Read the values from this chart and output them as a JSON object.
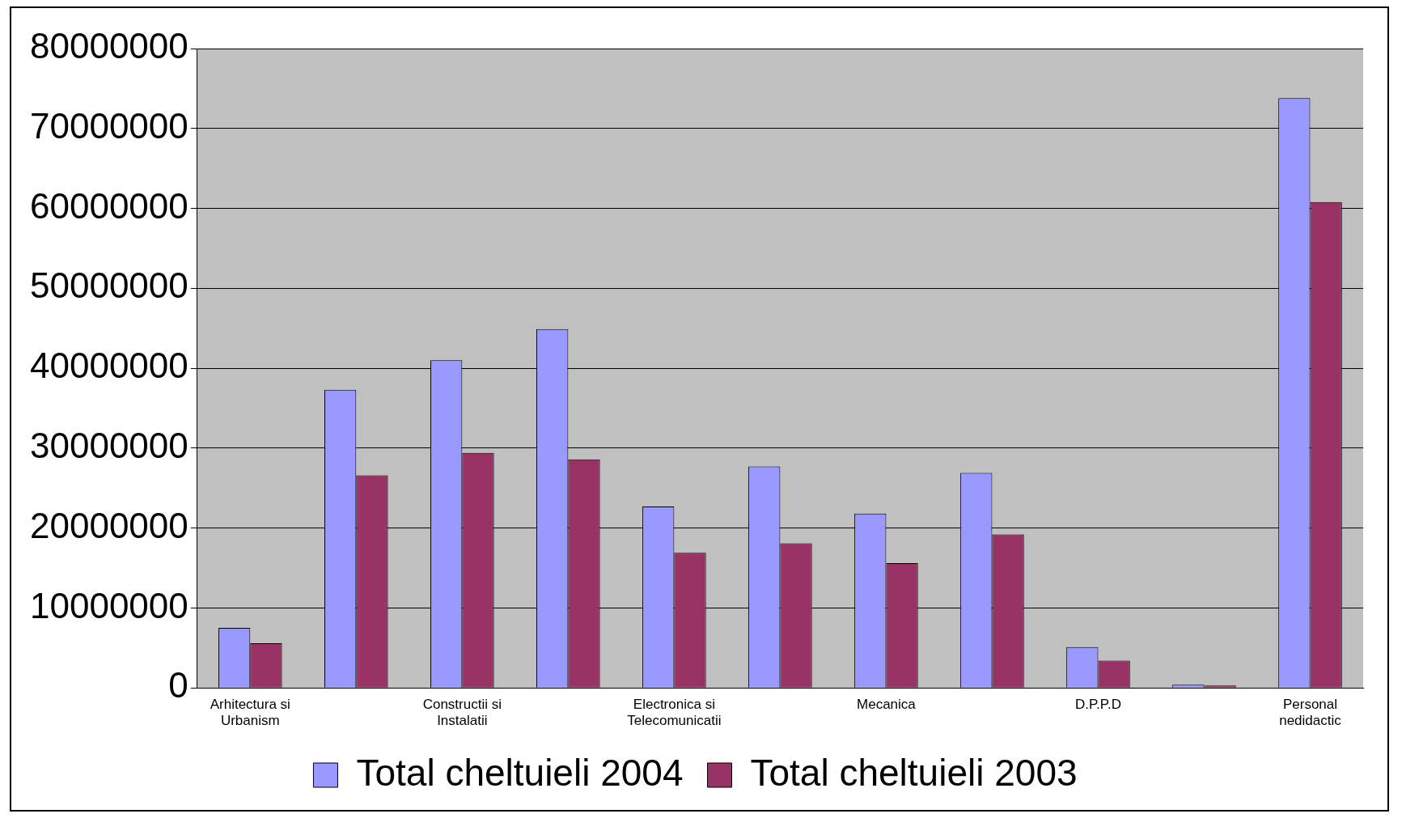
{
  "chart_data": {
    "type": "bar",
    "categories": [
      "Arhitectura si Urbanism",
      null,
      "Constructii si Instalatii",
      null,
      "Electronica si Telecomunicatii",
      null,
      "Mecanica",
      null,
      "D.P.P.D",
      null,
      "Personal nedidactic"
    ],
    "series": [
      {
        "name": "Total cheltuieli 2004",
        "color": "#9999ff",
        "values": [
          7500000,
          37300000,
          41000000,
          44900000,
          22700000,
          27700000,
          21800000,
          26900000,
          5100000,
          400000,
          73800000
        ]
      },
      {
        "name": "Total cheltuieli 2003",
        "color": "#993366",
        "values": [
          5600000,
          26600000,
          29400000,
          28600000,
          16900000,
          18100000,
          15600000,
          19200000,
          3400000,
          300000,
          60800000
        ]
      }
    ],
    "ylim": [
      0,
      80000000
    ],
    "yticks": [
      0,
      10000000,
      20000000,
      30000000,
      40000000,
      50000000,
      60000000,
      70000000,
      80000000
    ],
    "grid": "y",
    "legend": "bottom"
  }
}
